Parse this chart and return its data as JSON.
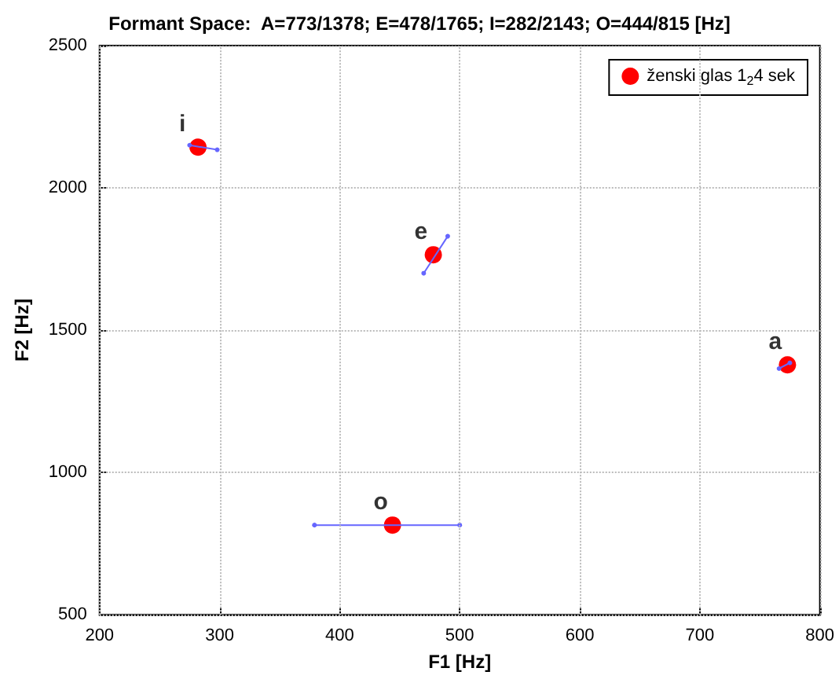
{
  "chart_data": {
    "type": "scatter",
    "title": "Formant Space:  A=773/1378; E=478/1765; I=282/2143; O=444/815 [Hz]",
    "xlabel": "F1 [Hz]",
    "ylabel": "F2 [Hz]",
    "x": [
      773,
      478,
      282,
      444
    ],
    "series": [
      {
        "type": "line",
        "color": "#6666ff",
        "marker": "circle",
        "x": [
          275,
          298,
          null,
          470,
          490,
          null,
          379,
          500,
          null,
          766,
          775
        ],
        "values": [
          2150,
          2134,
          null,
          1700,
          1830,
          null,
          815,
          815,
          null,
          1365,
          1385
        ]
      },
      {
        "name": "ženski glas 1$_{2}$4 sek",
        "color": "#ff0000",
        "marker": "circle",
        "values": [
          1378,
          1765,
          2143,
          815
        ]
      }
    ],
    "annotations": [
      {
        "text": "a",
        "x": 773,
        "y": 1378
      },
      {
        "text": "e",
        "x": 478,
        "y": 1765
      },
      {
        "text": "i",
        "x": 282,
        "y": 2143
      },
      {
        "text": "o",
        "x": 444,
        "y": 815
      }
    ],
    "xlim": [
      200,
      800
    ],
    "xticks": [
      200,
      300,
      400,
      500,
      600,
      700,
      800
    ],
    "ylim": [
      500,
      2500
    ],
    "yticks": [
      500,
      1000,
      1500,
      2000,
      2500
    ],
    "grid": true,
    "legend": "top right"
  }
}
